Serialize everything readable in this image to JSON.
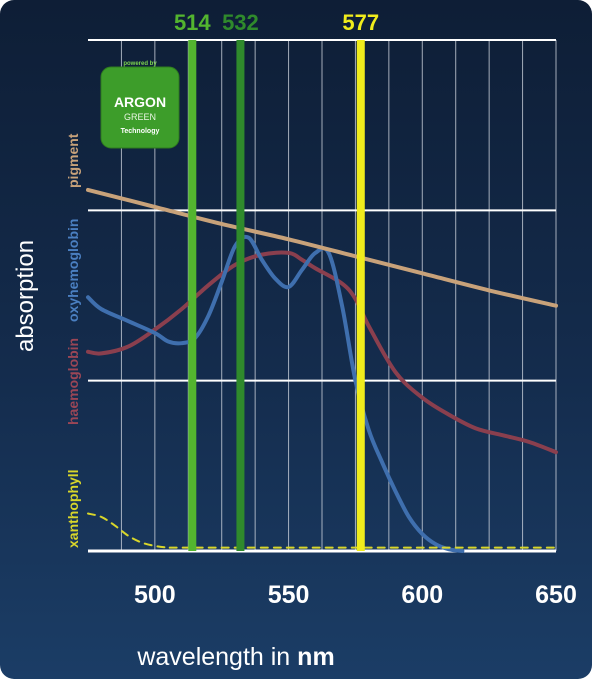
{
  "chart_data": {
    "type": "line",
    "title": "",
    "xlabel": "wavelength in",
    "xunit": "nm",
    "ylabel": "absorption",
    "xlim": [
      475,
      650
    ],
    "ylim": [
      0,
      3
    ],
    "xticks": [
      "500",
      "550",
      "600",
      "650"
    ],
    "grid": true,
    "laser_lines": [
      {
        "label": "514",
        "wavelength": 514,
        "color": "#53b52f"
      },
      {
        "label": "532",
        "wavelength": 532,
        "color": "#2f8a2c"
      },
      {
        "label": "577",
        "wavelength": 577,
        "color": "#f0ec1c"
      }
    ],
    "series": [
      {
        "name": "pigment",
        "color": "#c8a27a",
        "x": [
          475,
          500,
          525,
          550,
          575,
          600,
          625,
          650
        ],
        "y": [
          2.12,
          2.02,
          1.92,
          1.83,
          1.73,
          1.63,
          1.53,
          1.44
        ]
      },
      {
        "name": "oxyhemoglobin",
        "color": "#3f6fae",
        "x": [
          475,
          480,
          490,
          500,
          505,
          510,
          515,
          520,
          525,
          530,
          535,
          540,
          545,
          550,
          555,
          560,
          565,
          570,
          575,
          580,
          585,
          590,
          595,
          600,
          605,
          610,
          615
        ],
        "y": [
          1.49,
          1.42,
          1.35,
          1.28,
          1.23,
          1.22,
          1.25,
          1.38,
          1.58,
          1.79,
          1.84,
          1.71,
          1.6,
          1.55,
          1.65,
          1.75,
          1.75,
          1.44,
          1.0,
          0.71,
          0.52,
          0.35,
          0.2,
          0.1,
          0.04,
          0.01,
          0.0
        ]
      },
      {
        "name": "haemoglobin",
        "color": "#8a3f4e",
        "x": [
          475,
          480,
          490,
          500,
          510,
          520,
          530,
          540,
          550,
          555,
          560,
          570,
          575,
          580,
          590,
          600,
          610,
          620,
          630,
          640,
          650
        ],
        "y": [
          1.17,
          1.16,
          1.2,
          1.3,
          1.42,
          1.56,
          1.68,
          1.74,
          1.75,
          1.71,
          1.66,
          1.57,
          1.48,
          1.32,
          1.05,
          0.9,
          0.8,
          0.72,
          0.68,
          0.64,
          0.58
        ]
      },
      {
        "name": "xanthophyll",
        "color": "#d8d62a",
        "dashed": true,
        "x": [
          475,
          480,
          485,
          490,
          495,
          500,
          505,
          510,
          550,
          600,
          650
        ],
        "y": [
          0.22,
          0.2,
          0.15,
          0.09,
          0.05,
          0.03,
          0.02,
          0.02,
          0.02,
          0.02,
          0.02
        ]
      }
    ]
  },
  "badge": {
    "top": "powered by",
    "main": "ARGON",
    "sub": "GREEN",
    "bottom": "Technology"
  }
}
